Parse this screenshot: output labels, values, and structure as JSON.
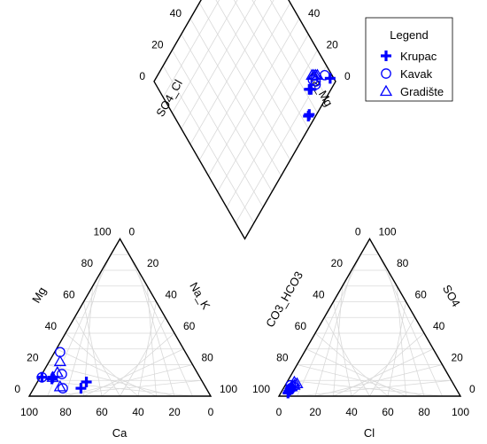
{
  "chart_data": {
    "type": "scatter",
    "subtype": "piper-diagram",
    "grid": true,
    "tick_labels": [
      "0",
      "20",
      "40",
      "60",
      "80",
      "100"
    ],
    "axes": {
      "cation_triangle": {
        "left": "Mg",
        "right": "Na_K",
        "bottom": "Ca"
      },
      "anion_triangle": {
        "left": "CO3_HCO3",
        "right": "SO4",
        "bottom": "Cl"
      },
      "diamond": {
        "left": "SO4_Cl",
        "right": "Ca_Mg"
      }
    },
    "legend": {
      "title": "Legend",
      "position": "top-right",
      "entries": [
        {
          "name": "Krupac",
          "marker": "plus"
        },
        {
          "name": "Kavak",
          "marker": "circle"
        },
        {
          "name": "Gradište",
          "marker": "triangle"
        }
      ]
    },
    "marker_color": "#0000ff",
    "series": [
      {
        "name": "Krupac",
        "marker": "plus",
        "cations": [
          [
            82,
            11,
            7
          ],
          [
            81,
            12,
            7
          ],
          [
            87,
            12,
            1
          ],
          [
            69,
            5,
            26
          ],
          [
            64,
            9,
            27
          ]
        ],
        "anions": [
          [
            93,
            3,
            4
          ],
          [
            92,
            4,
            4
          ],
          [
            91,
            5,
            4
          ],
          [
            94,
            2,
            4
          ],
          [
            90,
            6,
            4
          ]
        ],
        "diamond": [
          [
            11,
            84
          ],
          [
            12,
            83
          ],
          [
            4,
            98
          ],
          [
            4,
            75
          ],
          [
            4,
            74
          ]
        ]
      },
      {
        "name": "Kavak",
        "marker": "circle",
        "cations": [
          [
            87,
            12,
            1
          ],
          [
            75,
            14,
            11
          ],
          [
            69,
            28,
            3
          ],
          [
            79,
            5,
            16
          ]
        ],
        "anions": [
          [
            90,
            7,
            3
          ],
          [
            89,
            6,
            5
          ],
          [
            91,
            5,
            4
          ],
          [
            92,
            4,
            4
          ]
        ],
        "diamond": [
          [
            8,
            96
          ],
          [
            11,
            89
          ],
          [
            10,
            88
          ],
          [
            13,
            88
          ]
        ]
      },
      {
        "name": "Gradište",
        "marker": "triangle",
        "cations": [
          [
            81,
            12,
            7
          ],
          [
            77,
            15,
            8
          ],
          [
            72,
            22,
            6
          ],
          [
            80,
            6,
            14
          ]
        ],
        "anions": [
          [
            86,
            8,
            6
          ],
          [
            88,
            7,
            5
          ],
          [
            90,
            6,
            4
          ],
          [
            87,
            9,
            4
          ]
        ],
        "diamond": [
          [
            13,
            91
          ],
          [
            14,
            90
          ],
          [
            12,
            92
          ],
          [
            15,
            89
          ]
        ]
      }
    ]
  }
}
